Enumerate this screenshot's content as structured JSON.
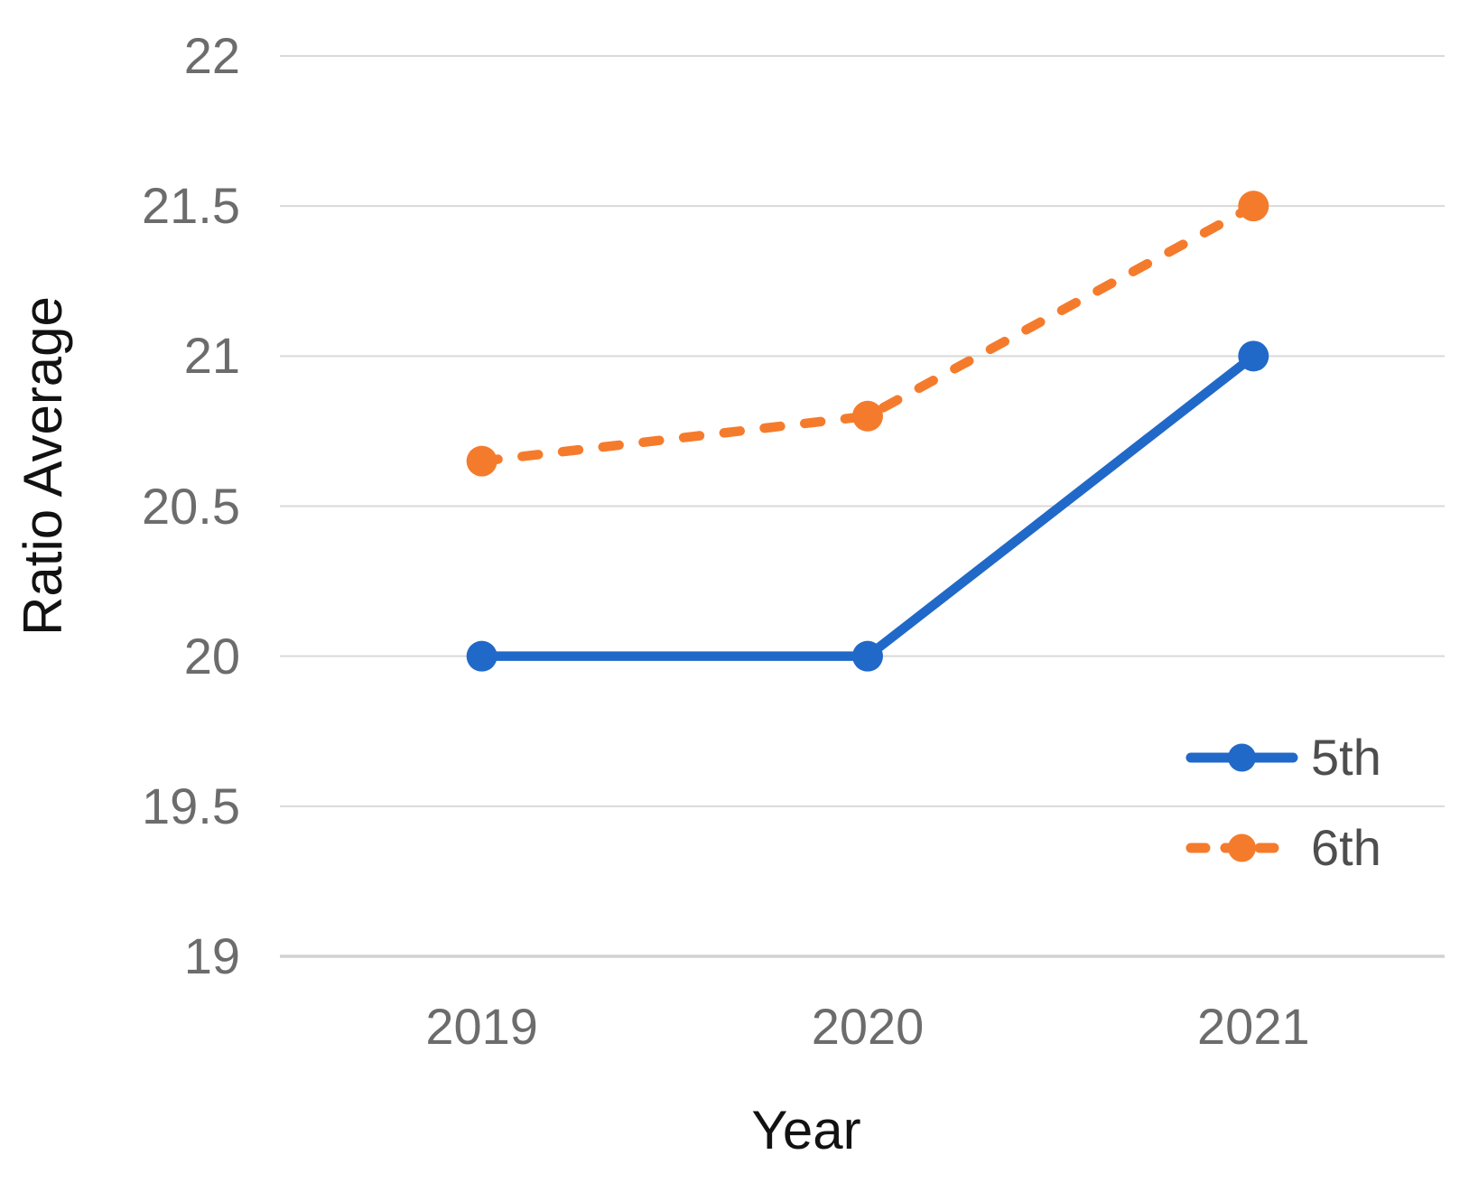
{
  "chart_data": {
    "type": "line",
    "title": "",
    "xlabel": "Year",
    "ylabel": "Ratio Average",
    "categories": [
      "2019",
      "2020",
      "2021"
    ],
    "series": [
      {
        "name": "5th",
        "values": [
          20.0,
          20.0,
          21.0
        ],
        "color": "#2169C8",
        "line_style": "solid",
        "marker": "circle"
      },
      {
        "name": "6th",
        "values": [
          20.65,
          20.8,
          21.5
        ],
        "color": "#F57B2C",
        "line_style": "dashed",
        "marker": "circle"
      }
    ],
    "ylim": [
      19,
      22
    ],
    "yticks": [
      22,
      21.5,
      21,
      20.5,
      20,
      19.5,
      19
    ],
    "ytick_labels": [
      "22",
      "21.5",
      "21",
      "20.5",
      "20",
      "19.5",
      "19"
    ],
    "grid": true,
    "legend_position": "inside-bottom-right"
  },
  "colors": {
    "background": "#FFFFFF",
    "gridline": "#D9D9D9",
    "axis_line": "#D2D2D2",
    "tick_label": "#6C6C6C",
    "axis_title": "#121212",
    "legend_text": "#4E4E4E"
  }
}
